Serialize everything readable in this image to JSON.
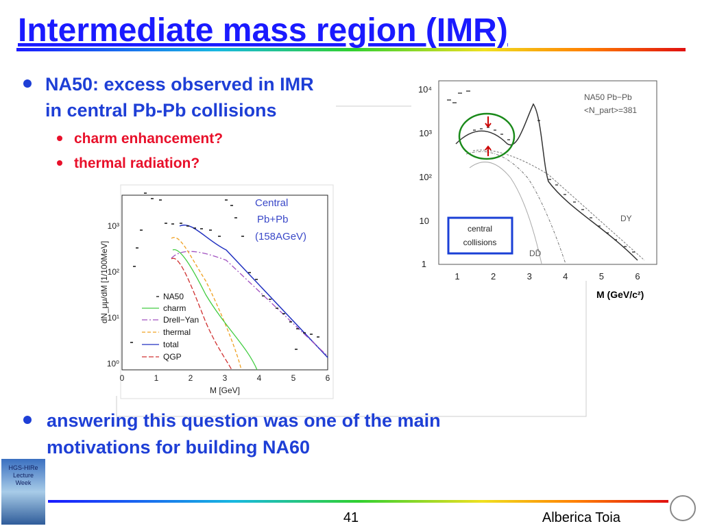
{
  "header": {
    "title": "Intermediate mass region (IMR)"
  },
  "bullets": [
    {
      "text": "NA50: excess observed in IMR",
      "text2": "in central Pb-Pb collisions",
      "sub": [
        "charm enhancement?",
        "thermal radiation?"
      ]
    },
    {
      "text": "answering this question was one of the main",
      "text2": "motivations for building NA60"
    }
  ],
  "left_plot": {
    "yticks": [
      "10³",
      "10²",
      "10¹",
      "10⁰"
    ],
    "xticks": [
      "0",
      "1",
      "2",
      "3",
      "4",
      "5",
      "6"
    ],
    "xlabel": "M [GeV]",
    "ylabel": "dN_μμ/dM [1/100MeV]",
    "label": [
      "Central",
      "Pb+Pb",
      "(158AGeV)"
    ],
    "legend": [
      "NA50",
      "charm",
      "Drell−Yan",
      "thermal",
      "total",
      "QGP"
    ]
  },
  "right_plot": {
    "yticks": [
      "10⁴",
      "10³",
      "10²",
      "10",
      "1"
    ],
    "xticks": [
      "1",
      "2",
      "3",
      "4",
      "5",
      "6"
    ],
    "label1": "NA50  Pb−Pb",
    "label2": "<N_part>=381",
    "dy": "DY",
    "dd": "DD̄",
    "box": [
      "central",
      "collisions"
    ],
    "xlabel": "M (GeV/c²)"
  },
  "footer": {
    "logo": [
      "HGS-HIRe",
      "Lecture",
      "Week"
    ],
    "page": "41",
    "author": "Alberica Toia"
  }
}
